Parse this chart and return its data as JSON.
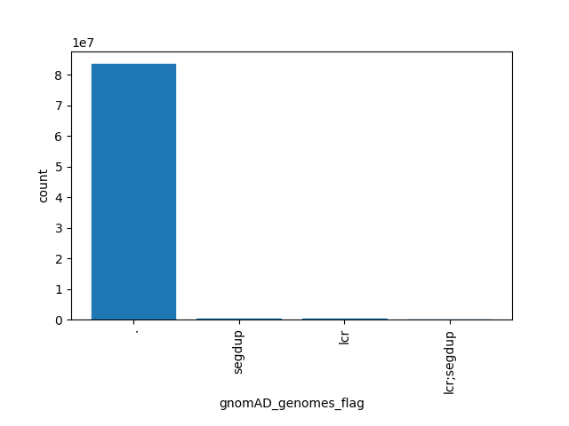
{
  "categories": [
    ".",
    "segdup",
    "lcr",
    "lcr;segdup"
  ],
  "values": [
    83500000,
    350000,
    350000,
    50000
  ],
  "bar_color": "#1f77b4",
  "xlabel": "gnomAD_genomes_flag",
  "ylabel": "count",
  "figsize": [
    6.4,
    4.8
  ],
  "dpi": 100
}
